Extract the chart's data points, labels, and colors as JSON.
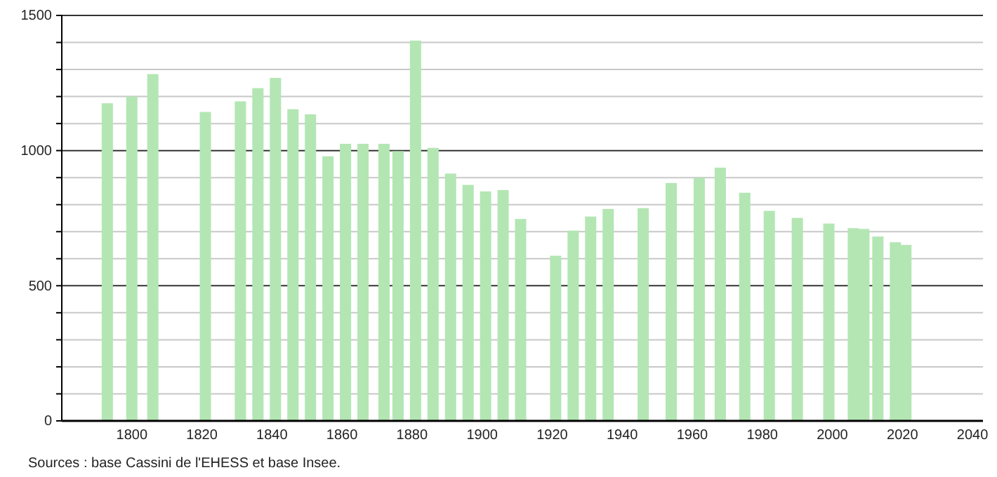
{
  "chart_data": {
    "type": "bar",
    "x": [
      1793,
      1800,
      1806,
      1821,
      1831,
      1836,
      1841,
      1846,
      1851,
      1856,
      1861,
      1866,
      1872,
      1876,
      1881,
      1886,
      1891,
      1896,
      1901,
      1906,
      1911,
      1921,
      1926,
      1931,
      1936,
      1946,
      1954,
      1962,
      1968,
      1975,
      1982,
      1990,
      1999,
      2006,
      2009,
      2013,
      2018,
      2021
    ],
    "values": [
      1175,
      1200,
      1283,
      1143,
      1182,
      1231,
      1269,
      1153,
      1134,
      979,
      1025,
      1025,
      1025,
      998,
      1407,
      1010,
      915,
      873,
      849,
      854,
      747,
      611,
      704,
      756,
      784,
      787,
      880,
      899,
      937,
      844,
      777,
      751,
      730,
      713,
      710,
      682,
      661,
      651
    ],
    "color": "#b3e6b3",
    "xlim": [
      1780,
      2043
    ],
    "xticks": [
      1800,
      1820,
      1840,
      1860,
      1880,
      1900,
      1920,
      1940,
      1960,
      1980,
      2000,
      2020,
      2040
    ],
    "ylim": [
      0,
      1500
    ],
    "yticks": [
      0,
      {
        "value": 100,
        "label": null
      },
      {
        "value": 200,
        "label": null
      },
      {
        "value": 300,
        "label": null
      },
      {
        "value": 400,
        "label": null
      },
      500,
      {
        "value": 600,
        "label": null
      },
      {
        "value": 700,
        "label": null
      },
      {
        "value": 800,
        "label": null
      },
      {
        "value": 900,
        "label": null
      },
      1000,
      {
        "value": 1100,
        "label": null
      },
      {
        "value": 1200,
        "label": null
      },
      {
        "value": 1300,
        "label": null
      },
      {
        "value": 1400,
        "label": null
      },
      1500
    ],
    "grid": "y",
    "annotations": [
      "Sources : base Cassini de l'EHESS et base Insee."
    ]
  }
}
